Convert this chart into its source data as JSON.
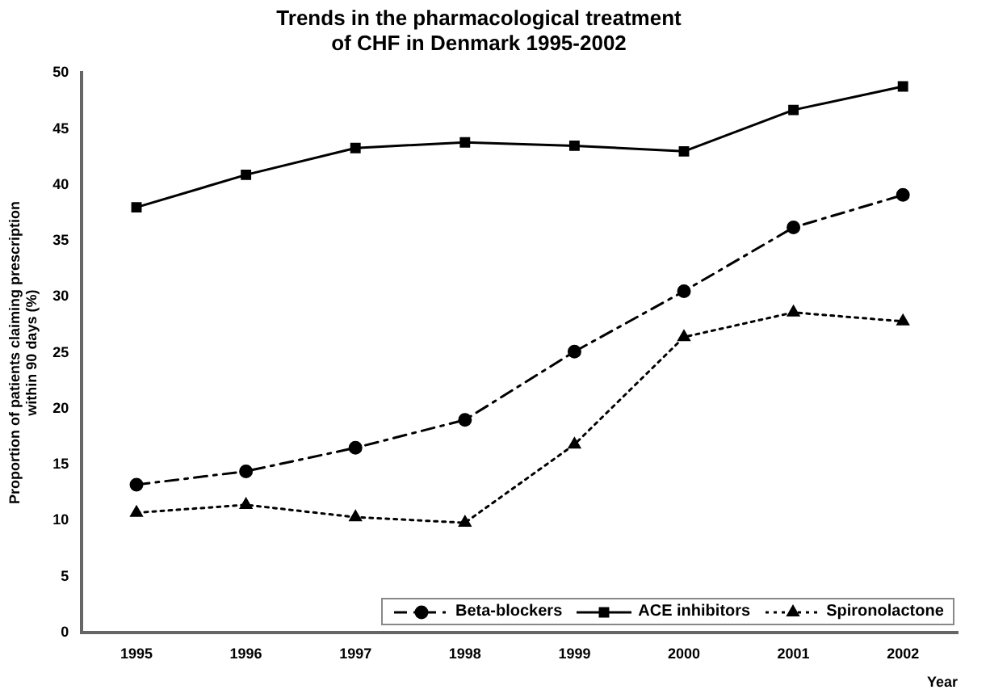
{
  "chart_data": {
    "type": "line",
    "title": "Trends in the pharmacological treatment\nof CHF in Denmark 1995-2002",
    "xlabel": "Year",
    "ylabel": "Proportion of patients claiming prescription\nwithin 90 days (%)",
    "categories": [
      "1995",
      "1996",
      "1997",
      "1998",
      "1999",
      "2000",
      "2001",
      "2002"
    ],
    "series": [
      {
        "name": "Beta-blockers",
        "color": "#000000",
        "marker": "circle",
        "line_style": "dashed",
        "values": [
          13.2,
          14.4,
          16.5,
          19,
          25.1,
          30.5,
          36.2,
          39.1
        ]
      },
      {
        "name": "ACE inhibitors",
        "color": "#000000",
        "marker": "square",
        "line_style": "solid",
        "values": [
          38,
          40.9,
          43.3,
          43.8,
          43.5,
          43,
          46.7,
          48.8
        ]
      },
      {
        "name": "Spironolactone",
        "color": "#000000",
        "marker": "triangle",
        "line_style": "dotted",
        "values": [
          10.7,
          11.4,
          10.3,
          9.8,
          16.8,
          26.4,
          28.6,
          27.8
        ]
      }
    ],
    "ylim": [
      0,
      50
    ],
    "yticks": [
      0,
      5,
      10,
      15,
      20,
      25,
      30,
      35,
      40,
      45,
      50
    ],
    "grid": false,
    "legend": "bottom right"
  }
}
